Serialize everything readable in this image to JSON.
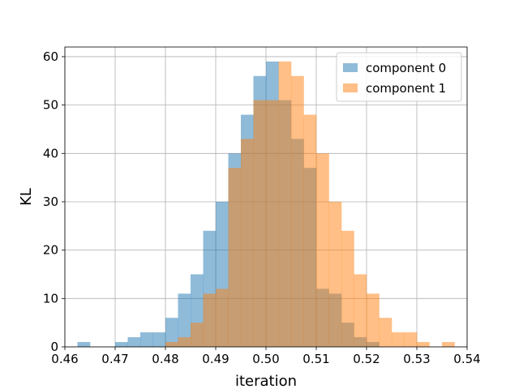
{
  "chart_data": {
    "type": "histogram",
    "xlabel": "iteration",
    "ylabel": "KL",
    "xlim": [
      0.46,
      0.54
    ],
    "ylim": [
      0,
      62
    ],
    "x_ticks": [
      "0.46",
      "0.47",
      "0.48",
      "0.49",
      "0.50",
      "0.51",
      "0.52",
      "0.53",
      "0.54"
    ],
    "y_ticks": [
      "0",
      "10",
      "20",
      "30",
      "40",
      "50",
      "60"
    ],
    "grid": true,
    "legend_position": "top-right",
    "bin_width": 0.0025,
    "series": [
      {
        "name": "component 0",
        "color": "#1f77b4",
        "alpha": 0.5,
        "bins": [
          {
            "x0": 0.4625,
            "count": 1
          },
          {
            "x0": 0.47,
            "count": 1
          },
          {
            "x0": 0.4725,
            "count": 2
          },
          {
            "x0": 0.475,
            "count": 3
          },
          {
            "x0": 0.4775,
            "count": 3
          },
          {
            "x0": 0.48,
            "count": 6
          },
          {
            "x0": 0.4825,
            "count": 11
          },
          {
            "x0": 0.485,
            "count": 15
          },
          {
            "x0": 0.4875,
            "count": 24
          },
          {
            "x0": 0.49,
            "count": 30
          },
          {
            "x0": 0.4925,
            "count": 40
          },
          {
            "x0": 0.495,
            "count": 48
          },
          {
            "x0": 0.4975,
            "count": 56
          },
          {
            "x0": 0.5,
            "count": 59
          },
          {
            "x0": 0.5025,
            "count": 51
          },
          {
            "x0": 0.505,
            "count": 43
          },
          {
            "x0": 0.5075,
            "count": 37
          },
          {
            "x0": 0.51,
            "count": 12
          },
          {
            "x0": 0.5125,
            "count": 11
          },
          {
            "x0": 0.515,
            "count": 5
          },
          {
            "x0": 0.5175,
            "count": 2
          },
          {
            "x0": 0.52,
            "count": 1
          }
        ]
      },
      {
        "name": "component 1",
        "color": "#ff7f0e",
        "alpha": 0.5,
        "bins": [
          {
            "x0": 0.48,
            "count": 1
          },
          {
            "x0": 0.4825,
            "count": 2
          },
          {
            "x0": 0.485,
            "count": 5
          },
          {
            "x0": 0.4875,
            "count": 11
          },
          {
            "x0": 0.49,
            "count": 12
          },
          {
            "x0": 0.4925,
            "count": 37
          },
          {
            "x0": 0.495,
            "count": 43
          },
          {
            "x0": 0.4975,
            "count": 51
          },
          {
            "x0": 0.5,
            "count": 51
          },
          {
            "x0": 0.5025,
            "count": 59
          },
          {
            "x0": 0.505,
            "count": 56
          },
          {
            "x0": 0.5075,
            "count": 48
          },
          {
            "x0": 0.51,
            "count": 40
          },
          {
            "x0": 0.5125,
            "count": 30
          },
          {
            "x0": 0.515,
            "count": 24
          },
          {
            "x0": 0.5175,
            "count": 15
          },
          {
            "x0": 0.52,
            "count": 11
          },
          {
            "x0": 0.5225,
            "count": 6
          },
          {
            "x0": 0.525,
            "count": 3
          },
          {
            "x0": 0.5275,
            "count": 3
          },
          {
            "x0": 0.53,
            "count": 1
          },
          {
            "x0": 0.535,
            "count": 1
          }
        ]
      }
    ]
  }
}
